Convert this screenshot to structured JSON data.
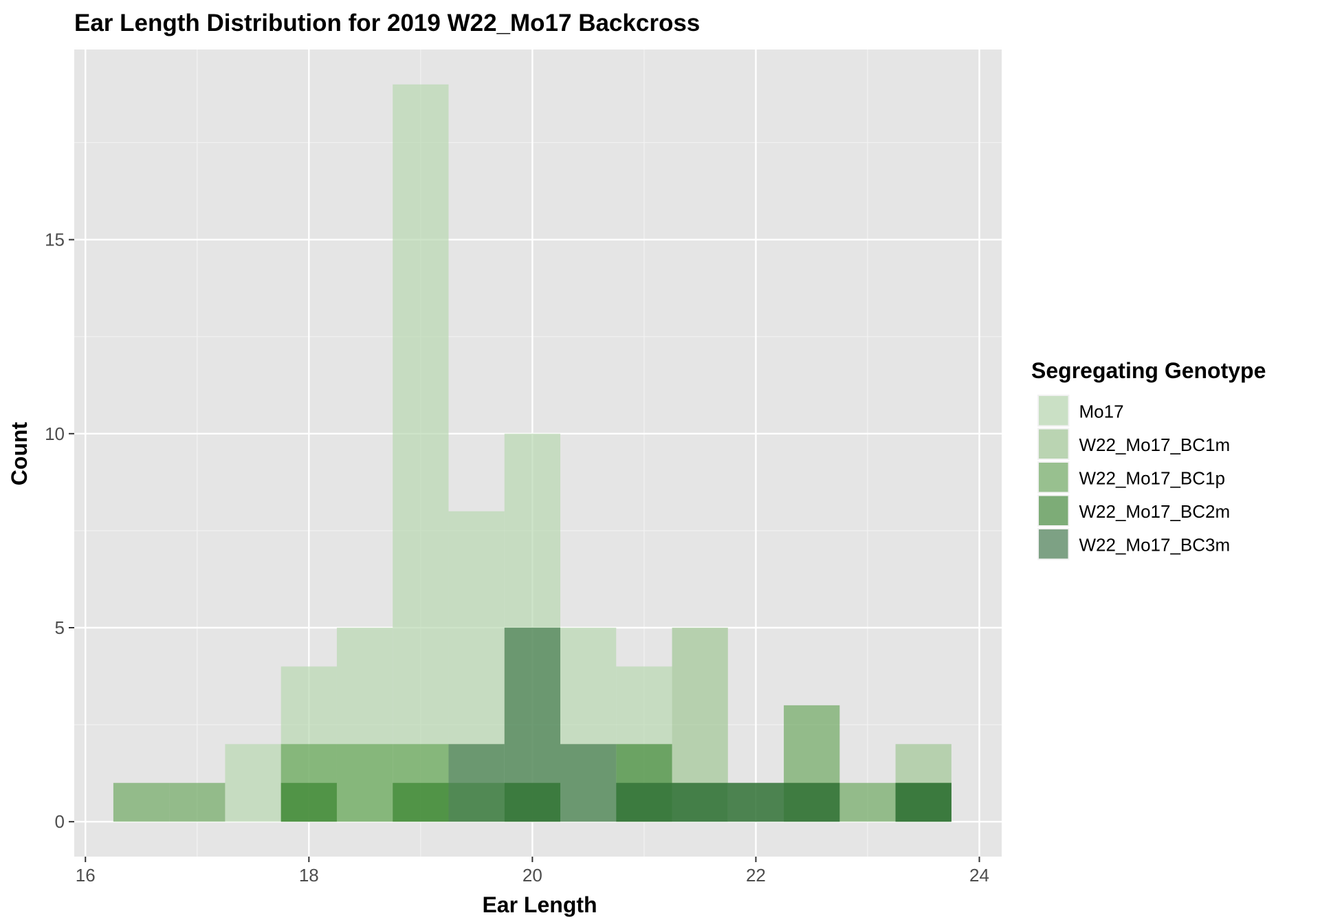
{
  "chart_data": {
    "type": "bar",
    "title": "Ear Length Distribution for 2019 W22_Mo17 Backcross",
    "xlabel": "Ear Length",
    "ylabel": "Count",
    "xlim": [
      15.9,
      24.2
    ],
    "ylim": [
      -0.9,
      19.9
    ],
    "x_ticks": [
      16,
      18,
      20,
      22,
      24
    ],
    "y_ticks": [
      0,
      5,
      10,
      15
    ],
    "bin_width": 0.5,
    "bin_centers": [
      16.5,
      17.0,
      17.5,
      18.0,
      18.5,
      19.0,
      19.5,
      20.0,
      20.5,
      21.0,
      21.5,
      22.0,
      22.5,
      23.0,
      23.5
    ],
    "grid": true,
    "legend": {
      "title": "Segregating Genotype",
      "position": "right"
    },
    "series": [
      {
        "name": "Mo17",
        "color": "#b9d9b2",
        "opacity": 0.7,
        "values": [
          0,
          0,
          2,
          4,
          5,
          19,
          8,
          10,
          5,
          4,
          0,
          0,
          0,
          0,
          0
        ]
      },
      {
        "name": "W22_Mo17_BC1m",
        "color": "#a2c897",
        "opacity": 0.7,
        "values": [
          0,
          0,
          0,
          0,
          0,
          0,
          0,
          0,
          0,
          0,
          5,
          0,
          0,
          0,
          2
        ]
      },
      {
        "name": "W22_Mo17_BC1p",
        "color": "#5b9e4d",
        "opacity": 0.6,
        "values": [
          1,
          1,
          0,
          2,
          2,
          2,
          1,
          1,
          0,
          1,
          0,
          0,
          3,
          1,
          1
        ]
      },
      {
        "name": "W22_Mo17_BC2m",
        "color": "#2f7d24",
        "opacity": 0.6,
        "values": [
          0,
          0,
          0,
          1,
          0,
          1,
          0,
          1,
          0,
          2,
          1,
          1,
          1,
          0,
          1
        ]
      },
      {
        "name": "W22_Mo17_BC3m",
        "color": "#2e6a3a",
        "opacity": 0.6,
        "values": [
          0,
          0,
          0,
          0,
          0,
          0,
          2,
          5,
          2,
          1,
          1,
          1,
          1,
          0,
          1
        ]
      }
    ]
  }
}
